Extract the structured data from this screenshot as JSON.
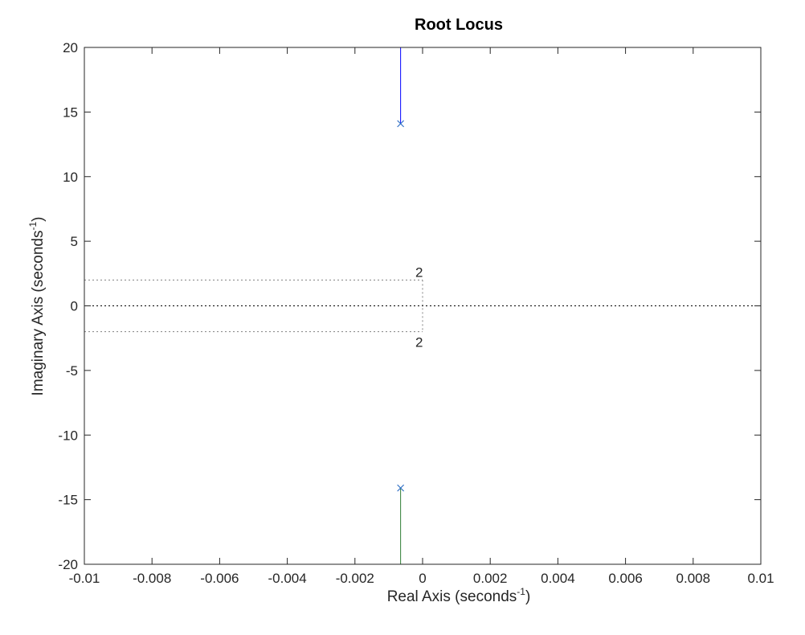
{
  "chart_data": {
    "type": "line",
    "title": "Root Locus",
    "xlabel": {
      "base": "Real  Axis  (seconds",
      "sup": "-1",
      "close": ")"
    },
    "ylabel": {
      "base": "Imaginary  Axis  (seconds",
      "sup": "-1",
      "close": ")"
    },
    "xlim": [
      -0.01,
      0.01
    ],
    "ylim": [
      -20,
      20
    ],
    "xticks": [
      -0.01,
      -0.008,
      -0.006,
      -0.004,
      -0.002,
      0,
      0.002,
      0.004,
      0.006,
      0.008,
      0.01
    ],
    "xtick_labels": [
      "-0.01",
      "-0.008",
      "-0.006",
      "-0.004",
      "-0.002",
      "0",
      "0.002",
      "0.004",
      "0.006",
      "0.008",
      "0.01"
    ],
    "yticks": [
      -20,
      -15,
      -10,
      -5,
      0,
      5,
      10,
      15,
      20
    ],
    "ytick_labels": [
      "-20",
      "-15",
      "-10",
      "-5",
      "0",
      "5",
      "10",
      "15",
      "20"
    ],
    "grid": false,
    "series": [
      {
        "color": "#0000ff",
        "x": [
          -0.00065,
          -0.00065
        ],
        "y": [
          14.1,
          20
        ]
      },
      {
        "color": "#2e7d32",
        "x": [
          -0.00065,
          -0.00065
        ],
        "y": [
          -14.1,
          -20
        ]
      }
    ],
    "poles": [
      {
        "x": -0.00065,
        "y": 14.1,
        "color": "#2b6cc4"
      },
      {
        "x": -0.00065,
        "y": -14.1,
        "color": "#2b6cc4"
      }
    ],
    "frequency_grid": {
      "color": "#808080",
      "lines": [
        {
          "y": 2,
          "x_end": 0.0
        },
        {
          "y": -2,
          "x_end": 0.0
        }
      ],
      "labels": [
        {
          "text": "2",
          "x": -0.0001,
          "y": 2,
          "position": "above"
        },
        {
          "text": "2",
          "x": -0.0001,
          "y": -2,
          "position": "below"
        }
      ]
    },
    "zero_line": {
      "y": 0,
      "color": "#000000"
    }
  }
}
